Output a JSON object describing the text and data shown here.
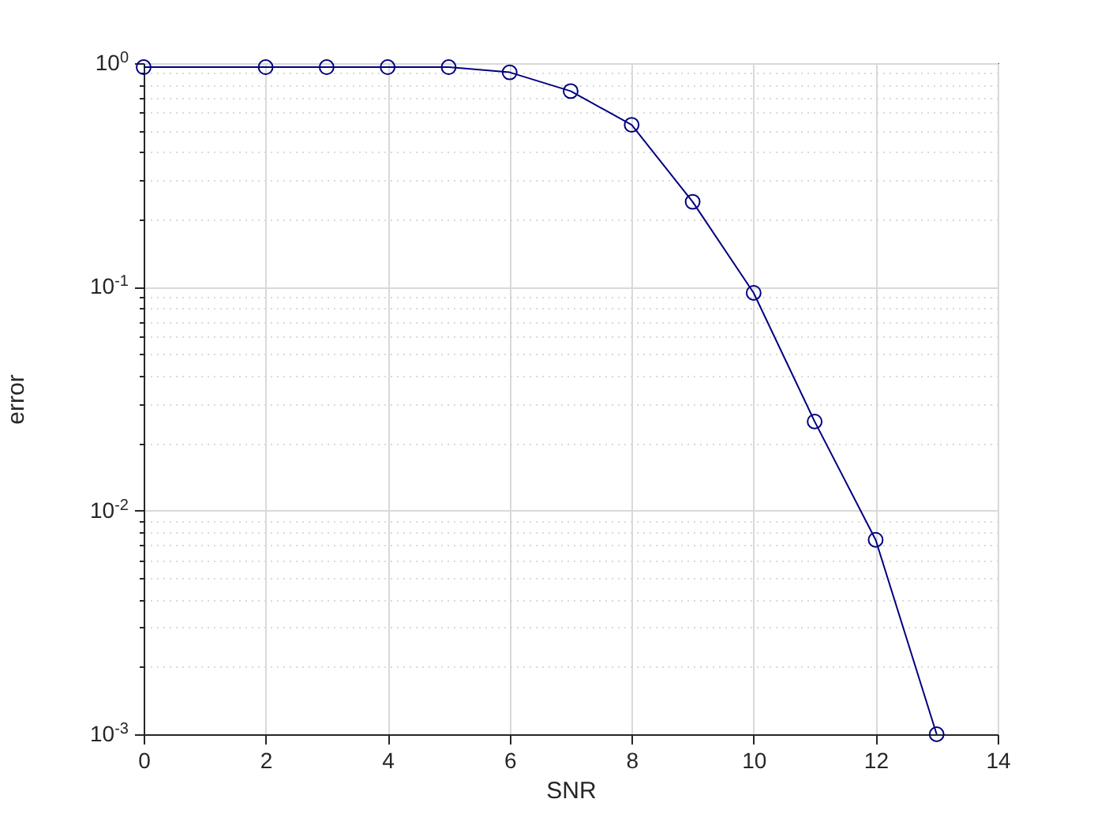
{
  "chart_data": {
    "type": "line",
    "xlabel": "SNR",
    "ylabel": "error",
    "x": [
      0,
      2,
      3,
      4,
      5,
      6,
      7,
      8,
      9,
      10,
      11,
      12,
      13
    ],
    "series": [
      {
        "color": "#00007f",
        "values": [
          0.96,
          0.96,
          0.96,
          0.96,
          0.96,
          0.91,
          0.75,
          0.53,
          0.24,
          0.094,
          0.025,
          0.0074,
          0.001
        ]
      }
    ],
    "log": "y",
    "xlim": [
      0,
      14
    ],
    "xticks": [
      0,
      2,
      4,
      6,
      8,
      10,
      12,
      14
    ],
    "ylim": [
      0.001,
      1
    ],
    "yticks": [
      {
        "value": 0.001,
        "label": "10$^{-3}$"
      },
      {
        "value": 0.002,
        "label": null
      },
      {
        "value": 0.003,
        "label": null
      },
      {
        "value": 0.004,
        "label": null
      },
      {
        "value": 0.005,
        "label": null
      },
      {
        "value": 0.006,
        "label": null
      },
      {
        "value": 0.007,
        "label": null
      },
      {
        "value": 0.008,
        "label": null
      },
      {
        "value": 0.009,
        "label": null
      },
      {
        "value": 0.01,
        "label": "10$^{-2}$"
      },
      {
        "value": 0.02,
        "label": null
      },
      {
        "value": 0.03,
        "label": null
      },
      {
        "value": 0.04,
        "label": null
      },
      {
        "value": 0.05,
        "label": null
      },
      {
        "value": 0.06,
        "label": null
      },
      {
        "value": 0.07,
        "label": null
      },
      {
        "value": 0.08,
        "label": null
      },
      {
        "value": 0.09,
        "label": null
      },
      {
        "value": 0.1,
        "label": "10$^{-1}$"
      },
      {
        "value": 0.2,
        "label": null
      },
      {
        "value": 0.3,
        "label": null
      },
      {
        "value": 0.4,
        "label": null
      },
      {
        "value": 0.5,
        "label": null
      },
      {
        "value": 0.6,
        "label": null
      },
      {
        "value": 0.7,
        "label": null
      },
      {
        "value": 0.8,
        "label": null
      },
      {
        "value": 0.9,
        "label": null
      },
      {
        "value": 1,
        "label": "10$^{0}$"
      }
    ],
    "grid": true,
    "marker": "circle",
    "line_style": "solid"
  }
}
